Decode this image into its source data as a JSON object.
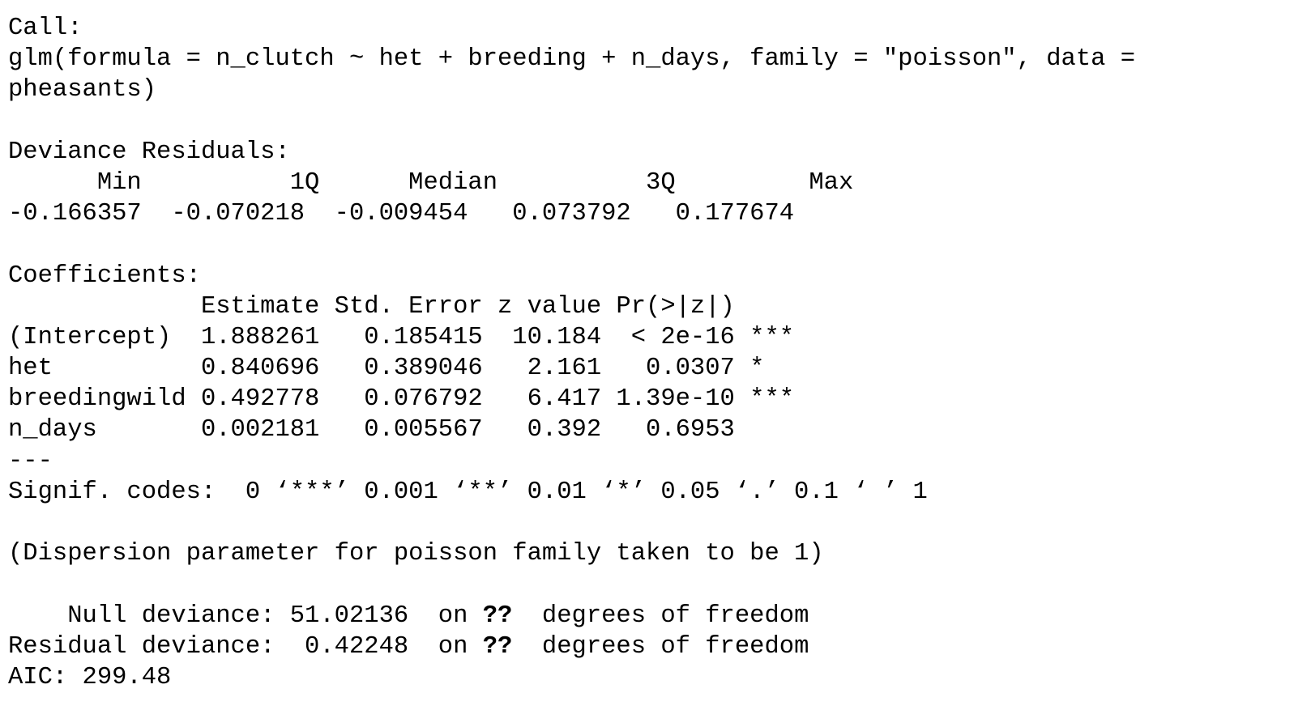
{
  "call": {
    "header": "Call:",
    "line1": "glm(formula = n_clutch ~ het + breeding + n_days, family = \"poisson\", data =",
    "line2": "pheasants)"
  },
  "deviance_residuals": {
    "header": "Deviance Residuals:",
    "labels_line": "      Min          1Q      Median          3Q         Max",
    "values_line": "-0.166357  -0.070218  -0.009454   0.073792   0.177674"
  },
  "coefficients": {
    "header": "Coefficients:",
    "columns_line": "             Estimate Std. Error z value Pr(>|z|)    ",
    "rows": [
      "(Intercept)  1.888261   0.185415  10.184  < 2e-16 ***",
      "het          0.840696   0.389046   2.161   0.0307 *  ",
      "breedingwild 0.492778   0.076792   6.417 1.39e-10 ***",
      "n_days       0.002181   0.005567   0.392   0.6953    "
    ],
    "separator": "---",
    "signif_codes": "Signif. codes:  0 ‘***’ 0.001 ‘**’ 0.01 ‘*’ 0.05 ‘.’ 0.1 ‘ ’ 1"
  },
  "dispersion": "(Dispersion parameter for poisson family taken to be 1)",
  "deviance": {
    "null": {
      "prefix": "    Null deviance: 51.02136  on ",
      "df": "??",
      "suffix": "  degrees of freedom"
    },
    "residual": {
      "prefix": "Residual deviance:  0.42248  on ",
      "df": "??",
      "suffix": "  degrees of freedom"
    }
  },
  "aic": "AIC: 299.48"
}
